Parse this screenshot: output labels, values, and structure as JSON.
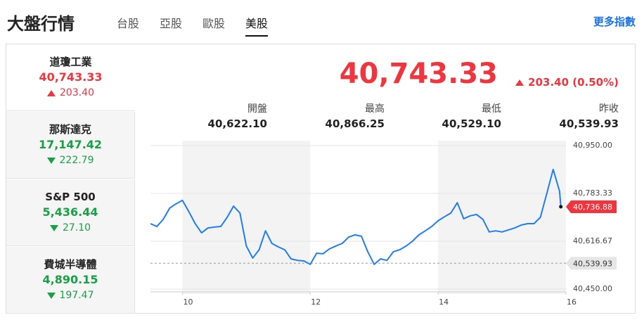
{
  "header": {
    "title": "大盤行情",
    "tabs": [
      "台股",
      "亞股",
      "歐股",
      "美股"
    ],
    "active_tab": 3,
    "more_link": "更多指數"
  },
  "sidebar": [
    {
      "name": "道瓊工業",
      "price": "40,743.33",
      "change": "203.40",
      "direction": "up"
    },
    {
      "name": "那斯達克",
      "price": "17,147.42",
      "change": "222.79",
      "direction": "down"
    },
    {
      "name": "S&P 500",
      "price": "5,436.44",
      "change": "27.10",
      "direction": "down"
    },
    {
      "name": "費城半導體",
      "price": "4,890.15",
      "change": "197.47",
      "direction": "down"
    }
  ],
  "selected": 0,
  "summary": {
    "price": "40,743.33",
    "change": "203.40 (0.50%)",
    "direction": "up",
    "stats": [
      {
        "label": "開盤",
        "value": "40,622.10"
      },
      {
        "label": "最高",
        "value": "40,866.25"
      },
      {
        "label": "最低",
        "value": "40,529.10"
      },
      {
        "label": "昨收",
        "value": "40,539.93"
      }
    ]
  },
  "chart_data": {
    "type": "line",
    "x": [
      9.5,
      9.6,
      9.7,
      9.8,
      9.9,
      10.0,
      10.1,
      10.2,
      10.3,
      10.4,
      10.5,
      10.6,
      10.7,
      10.8,
      10.9,
      11.0,
      11.1,
      11.2,
      11.3,
      11.4,
      11.5,
      11.6,
      11.7,
      11.8,
      11.9,
      12.0,
      12.1,
      12.2,
      12.3,
      12.4,
      12.5,
      12.6,
      12.7,
      12.8,
      12.9,
      13.0,
      13.1,
      13.2,
      13.3,
      13.4,
      13.5,
      13.6,
      13.7,
      13.8,
      13.9,
      14.0,
      14.1,
      14.2,
      14.3,
      14.4,
      14.5,
      14.6,
      14.7,
      14.8,
      14.9,
      15.0,
      15.1,
      15.2,
      15.3,
      15.4,
      15.5,
      15.6,
      15.7,
      15.8,
      15.9,
      15.92
    ],
    "series": [
      {
        "name": "道瓊工業",
        "color": "#1e7df0",
        "values": [
          40678,
          40668,
          40693,
          40732,
          40747,
          40759,
          40720,
          40678,
          40646,
          40663,
          40666,
          40668,
          40700,
          40739,
          40715,
          40600,
          40558,
          40587,
          40653,
          40609,
          40597,
          40587,
          40555,
          40550,
          40548,
          40536,
          40575,
          40573,
          40590,
          40600,
          40609,
          40631,
          40639,
          40634,
          40580,
          40536,
          40555,
          40550,
          40580,
          40587,
          40600,
          40617,
          40639,
          40653,
          40668,
          40688,
          40702,
          40715,
          40751,
          40695,
          40705,
          40710,
          40693,
          40649,
          40653,
          40649,
          40656,
          40663,
          40673,
          40678,
          40678,
          40700,
          40783,
          40867,
          40791,
          40736.88
        ]
      }
    ],
    "xlim": [
      9.5,
      16
    ],
    "xticks": [
      10,
      12,
      14,
      16
    ],
    "ylim": [
      40450,
      40950
    ],
    "yticks": [
      {
        "value": 40450,
        "label": "40,450.00"
      },
      {
        "value": 40616.67,
        "label": "40,616.67"
      },
      {
        "value": 40783.33,
        "label": "40,783.33"
      },
      {
        "value": 40950,
        "label": "40,950.00"
      }
    ],
    "grid": true,
    "current": {
      "value": 40736.88,
      "label": "40,736.88",
      "color": "#f0353e"
    },
    "reference": {
      "value": 40539.93,
      "label": "40,539.93",
      "color": "#e6e6e6"
    }
  }
}
